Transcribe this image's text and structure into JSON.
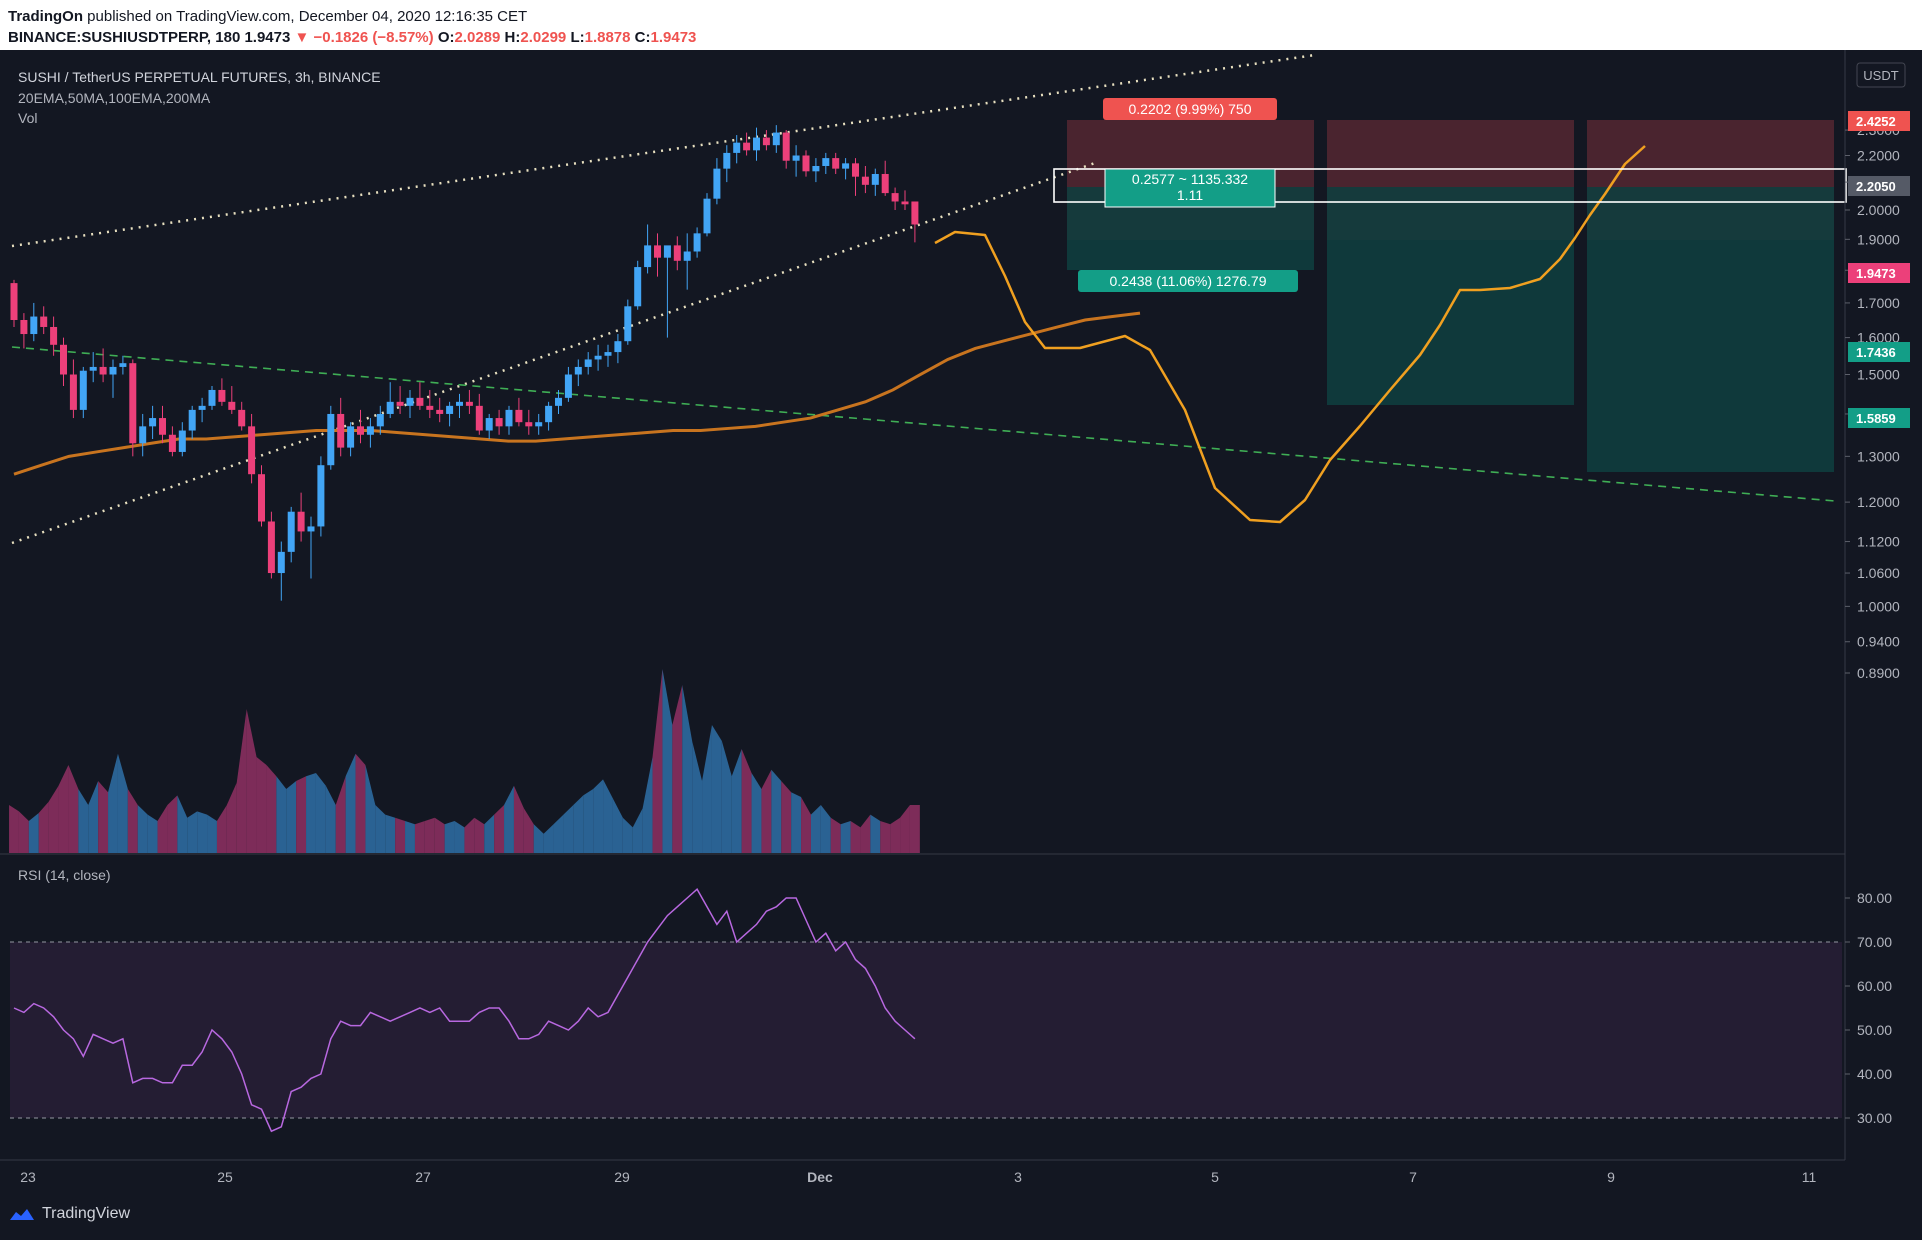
{
  "header": {
    "publisher": "TradingOn",
    "published_text": "published on TradingView.com, December 04, 2020 12:16:35 CET",
    "symbol": "BINANCE:SUSHIUSDTPERP, 180",
    "last": "1.9473",
    "change": "−0.1826 (−8.57%)",
    "o_label": "O:",
    "o_value": "2.0289",
    "h_label": "H:",
    "h_value": "2.0299",
    "l_label": "L:",
    "l_value": "1.8878",
    "c_label": "C:",
    "c_value": "1.9473"
  },
  "legend": {
    "title": "SUSHI / TetherUS PERPETUAL FUTURES, 3h, BINANCE",
    "indicators": "20EMA,50MA,100EMA,200MA",
    "vol": "Vol",
    "rsi": "RSI (14, close)",
    "currency": "USDT"
  },
  "price_labels": {
    "upper_pct": "0.2202 (9.99%) 750",
    "lower_pct": "0.2438 (11.06%) 1276.79",
    "box_line1": "0.2577 ~ 1135.332",
    "box_line2": "1.11"
  },
  "axis_tags": {
    "top": "2.4252",
    "entry": "2.2050",
    "current": "1.9473",
    "t1": "1.7436",
    "t2": "1.5859"
  },
  "footer": {
    "brand": "TradingView"
  },
  "chart_data": {
    "type": "candlestick",
    "y_axis": {
      "ticks": [
        "0.8900",
        "0.9400",
        "1.0000",
        "1.0600",
        "1.1200",
        "1.2000",
        "1.3000",
        "1.4000",
        "1.5000",
        "1.6000",
        "1.7000",
        "1.8000",
        "1.9000",
        "2.0000",
        "2.1000",
        "2.2000",
        "2.3000"
      ],
      "scale": "log"
    },
    "x_axis": {
      "ticks": [
        "23",
        "25",
        "27",
        "29",
        "Dec",
        "3",
        "5",
        "7",
        "9",
        "11"
      ]
    },
    "rsi_axis": {
      "ticks": [
        "30.00",
        "40.00",
        "50.00",
        "60.00",
        "70.00",
        "80.00"
      ],
      "overbought": 70,
      "oversold": 30
    },
    "colors": {
      "up": "#42a5f5",
      "down": "#ec407a",
      "ema": "#c8741f",
      "forecast": "#f0a020",
      "rsi": "#b868e0"
    },
    "candles": [
      [
        1.76,
        1.77,
        1.63,
        1.65
      ],
      [
        1.65,
        1.67,
        1.57,
        1.61
      ],
      [
        1.61,
        1.7,
        1.59,
        1.66
      ],
      [
        1.66,
        1.69,
        1.61,
        1.63
      ],
      [
        1.63,
        1.66,
        1.55,
        1.58
      ],
      [
        1.58,
        1.6,
        1.47,
        1.5
      ],
      [
        1.5,
        1.54,
        1.39,
        1.41
      ],
      [
        1.41,
        1.52,
        1.39,
        1.51
      ],
      [
        1.51,
        1.56,
        1.48,
        1.52
      ],
      [
        1.52,
        1.57,
        1.48,
        1.5
      ],
      [
        1.5,
        1.54,
        1.44,
        1.52
      ],
      [
        1.52,
        1.55,
        1.5,
        1.53
      ],
      [
        1.53,
        1.54,
        1.3,
        1.33
      ],
      [
        1.33,
        1.4,
        1.3,
        1.37
      ],
      [
        1.37,
        1.42,
        1.34,
        1.39
      ],
      [
        1.39,
        1.42,
        1.33,
        1.35
      ],
      [
        1.35,
        1.37,
        1.3,
        1.31
      ],
      [
        1.31,
        1.38,
        1.3,
        1.36
      ],
      [
        1.36,
        1.42,
        1.34,
        1.41
      ],
      [
        1.41,
        1.44,
        1.38,
        1.42
      ],
      [
        1.42,
        1.47,
        1.41,
        1.46
      ],
      [
        1.46,
        1.49,
        1.42,
        1.43
      ],
      [
        1.43,
        1.47,
        1.4,
        1.41
      ],
      [
        1.41,
        1.43,
        1.36,
        1.37
      ],
      [
        1.37,
        1.4,
        1.24,
        1.26
      ],
      [
        1.26,
        1.28,
        1.15,
        1.16
      ],
      [
        1.16,
        1.18,
        1.05,
        1.06
      ],
      [
        1.06,
        1.12,
        1.01,
        1.1
      ],
      [
        1.1,
        1.19,
        1.08,
        1.18
      ],
      [
        1.18,
        1.22,
        1.12,
        1.14
      ],
      [
        1.14,
        1.17,
        1.05,
        1.15
      ],
      [
        1.15,
        1.3,
        1.13,
        1.28
      ],
      [
        1.28,
        1.42,
        1.27,
        1.4
      ],
      [
        1.4,
        1.44,
        1.3,
        1.32
      ],
      [
        1.32,
        1.38,
        1.3,
        1.37
      ],
      [
        1.37,
        1.41,
        1.33,
        1.35
      ],
      [
        1.35,
        1.39,
        1.32,
        1.37
      ],
      [
        1.37,
        1.42,
        1.35,
        1.4
      ],
      [
        1.4,
        1.48,
        1.39,
        1.43
      ],
      [
        1.43,
        1.47,
        1.4,
        1.42
      ],
      [
        1.42,
        1.46,
        1.39,
        1.44
      ],
      [
        1.44,
        1.48,
        1.41,
        1.42
      ],
      [
        1.42,
        1.46,
        1.39,
        1.41
      ],
      [
        1.41,
        1.44,
        1.38,
        1.4
      ],
      [
        1.4,
        1.43,
        1.37,
        1.42
      ],
      [
        1.42,
        1.45,
        1.39,
        1.43
      ],
      [
        1.43,
        1.46,
        1.4,
        1.42
      ],
      [
        1.42,
        1.45,
        1.35,
        1.36
      ],
      [
        1.36,
        1.4,
        1.34,
        1.39
      ],
      [
        1.39,
        1.41,
        1.35,
        1.37
      ],
      [
        1.37,
        1.42,
        1.35,
        1.41
      ],
      [
        1.41,
        1.44,
        1.37,
        1.38
      ],
      [
        1.38,
        1.41,
        1.35,
        1.37
      ],
      [
        1.37,
        1.4,
        1.35,
        1.38
      ],
      [
        1.38,
        1.43,
        1.36,
        1.42
      ],
      [
        1.42,
        1.46,
        1.4,
        1.44
      ],
      [
        1.44,
        1.52,
        1.43,
        1.5
      ],
      [
        1.5,
        1.54,
        1.47,
        1.52
      ],
      [
        1.52,
        1.56,
        1.5,
        1.54
      ],
      [
        1.54,
        1.58,
        1.51,
        1.55
      ],
      [
        1.55,
        1.58,
        1.52,
        1.56
      ],
      [
        1.56,
        1.61,
        1.53,
        1.59
      ],
      [
        1.59,
        1.71,
        1.58,
        1.69
      ],
      [
        1.69,
        1.83,
        1.68,
        1.81
      ],
      [
        1.81,
        1.95,
        1.79,
        1.88
      ],
      [
        1.88,
        1.92,
        1.78,
        1.84
      ],
      [
        1.84,
        1.87,
        1.6,
        1.88
      ],
      [
        1.88,
        1.91,
        1.8,
        1.83
      ],
      [
        1.83,
        1.92,
        1.74,
        1.86
      ],
      [
        1.86,
        1.94,
        1.84,
        1.92
      ],
      [
        1.92,
        2.06,
        1.91,
        2.04
      ],
      [
        2.04,
        2.19,
        2.02,
        2.15
      ],
      [
        2.15,
        2.24,
        2.1,
        2.21
      ],
      [
        2.21,
        2.28,
        2.17,
        2.25
      ],
      [
        2.25,
        2.29,
        2.2,
        2.22
      ],
      [
        2.22,
        2.31,
        2.18,
        2.27
      ],
      [
        2.27,
        2.3,
        2.22,
        2.24
      ],
      [
        2.24,
        2.32,
        2.21,
        2.29
      ],
      [
        2.29,
        2.3,
        2.15,
        2.18
      ],
      [
        2.18,
        2.24,
        2.12,
        2.2
      ],
      [
        2.2,
        2.22,
        2.12,
        2.14
      ],
      [
        2.14,
        2.19,
        2.1,
        2.16
      ],
      [
        2.16,
        2.21,
        2.13,
        2.19
      ],
      [
        2.19,
        2.21,
        2.13,
        2.15
      ],
      [
        2.15,
        2.19,
        2.11,
        2.17
      ],
      [
        2.17,
        2.19,
        2.05,
        2.12
      ],
      [
        2.12,
        2.16,
        2.06,
        2.09
      ],
      [
        2.09,
        2.15,
        2.05,
        2.13
      ],
      [
        2.13,
        2.18,
        2.05,
        2.06
      ],
      [
        2.06,
        2.08,
        2.0,
        2.03
      ],
      [
        2.03,
        2.07,
        2.0,
        2.02
      ],
      [
        2.03,
        2.03,
        1.89,
        1.95
      ]
    ],
    "ema_100": [
      1.26,
      1.28,
      1.3,
      1.31,
      1.32,
      1.33,
      1.34,
      1.34,
      1.345,
      1.35,
      1.355,
      1.36,
      1.36,
      1.36,
      1.355,
      1.35,
      1.345,
      1.34,
      1.335,
      1.335,
      1.34,
      1.345,
      1.35,
      1.355,
      1.36,
      1.36,
      1.365,
      1.37,
      1.38,
      1.39,
      1.41,
      1.43,
      1.46,
      1.5,
      1.54,
      1.57,
      1.59,
      1.61,
      1.63,
      1.65,
      1.66,
      1.67
    ],
    "forecast_path": [
      [
        935,
        193
      ],
      [
        955,
        182
      ],
      [
        985,
        185
      ],
      [
        1005,
        226
      ],
      [
        1025,
        272
      ],
      [
        1045,
        298
      ],
      [
        1080,
        298
      ],
      [
        1125,
        286
      ],
      [
        1150,
        300
      ],
      [
        1185,
        360
      ],
      [
        1215,
        438
      ],
      [
        1250,
        470
      ],
      [
        1280,
        472
      ],
      [
        1305,
        450
      ],
      [
        1330,
        410
      ],
      [
        1360,
        376
      ],
      [
        1390,
        340
      ],
      [
        1420,
        305
      ],
      [
        1440,
        275
      ],
      [
        1460,
        240
      ],
      [
        1480,
        240
      ],
      [
        1510,
        238
      ],
      [
        1540,
        229
      ],
      [
        1560,
        209
      ],
      [
        1575,
        188
      ],
      [
        1590,
        165
      ],
      [
        1605,
        144
      ],
      [
        1625,
        114
      ],
      [
        1645,
        96
      ]
    ],
    "rsi_values": [
      55,
      54,
      56,
      55,
      53,
      50,
      48,
      44,
      49,
      48,
      47,
      48,
      38,
      39,
      39,
      38,
      38,
      42,
      42,
      45,
      50,
      48,
      45,
      40,
      33,
      32,
      27,
      28,
      36,
      37,
      39,
      40,
      48,
      52,
      51,
      51,
      54,
      53,
      52,
      53,
      54,
      55,
      54,
      55,
      52,
      52,
      52,
      54,
      55,
      55,
      52,
      48,
      48,
      49,
      52,
      51,
      50,
      52,
      55,
      53,
      54,
      58,
      62,
      66,
      70,
      73,
      76,
      78,
      80,
      82,
      78,
      74,
      77,
      70,
      72,
      74,
      77,
      78,
      80,
      80,
      75,
      70,
      72,
      68,
      70,
      66,
      64,
      60,
      55,
      52,
      50,
      48
    ]
  }
}
